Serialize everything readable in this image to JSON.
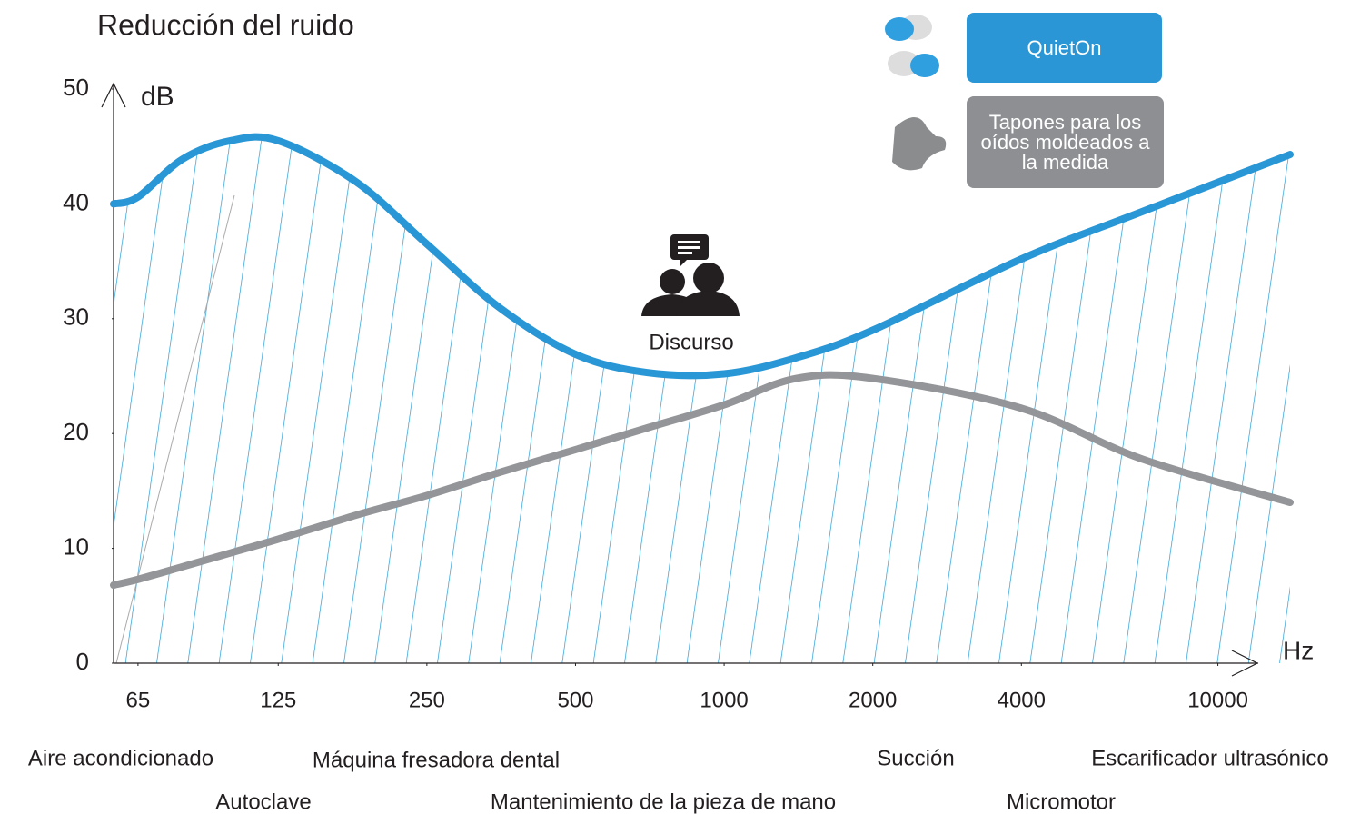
{
  "chart_data": {
    "type": "line",
    "title": "Reducción del ruido",
    "y_label": "dB",
    "x_label": "Hz",
    "log_x": true,
    "xlim": [
      58,
      14000
    ],
    "xticks": [
      65,
      125,
      250,
      500,
      1000,
      2000,
      4000,
      10000
    ],
    "ylim": [
      0,
      50
    ],
    "yticks": [
      0,
      10,
      20,
      30,
      40,
      50
    ],
    "x": [
      58,
      65,
      80,
      100,
      125,
      180,
      250,
      350,
      500,
      700,
      1000,
      1400,
      2000,
      4000,
      7000,
      14000
    ],
    "series": [
      {
        "name": "QuietOn",
        "color": "#2996d6",
        "hatched": true,
        "values": [
          40,
          40.6,
          43.9,
          45.5,
          45.5,
          41.9,
          36.5,
          31,
          26.9,
          25.3,
          25.2,
          26.6,
          29,
          35.2,
          39.3,
          44.3
        ]
      },
      {
        "name": "Tapones para los oídos moldeados a la medida",
        "color": "#939598",
        "hatched": false,
        "values": [
          6.8,
          7.3,
          8.4,
          9.6,
          10.8,
          12.9,
          14.6,
          16.6,
          18.6,
          20.5,
          22.5,
          24.8,
          24.8,
          22.2,
          17.8,
          14
        ]
      }
    ],
    "annotations": [
      "Discurso"
    ],
    "noise_sources": [
      "Aire acondicionado",
      "Autoclave",
      "Máquina fresadora dental",
      "Mantenimiento de la pieza de mano",
      "Succión",
      "Micromotor",
      "Escarificador ultrasónico"
    ]
  }
}
